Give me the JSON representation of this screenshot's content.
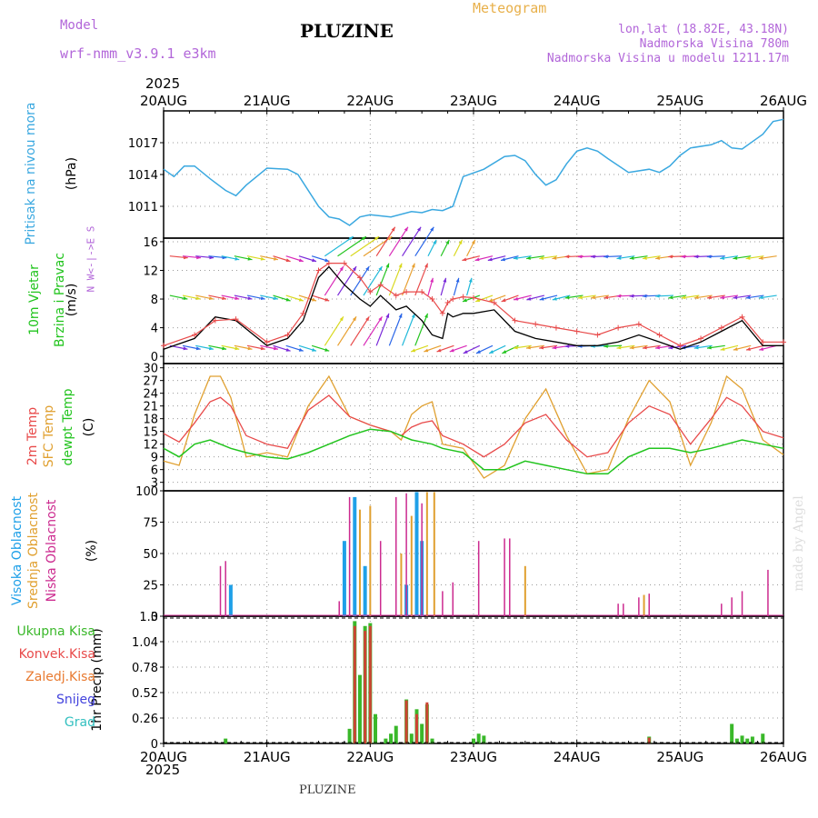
{
  "header": {
    "model_label": "Model",
    "model_name": "wrf-nmm_v3.9.1  e3km",
    "location": "PLUZINE",
    "meteogram": "Meteogram",
    "coords": "lon,lat (18.82E, 43.18N)",
    "elevation": "Nadmorska Visina 780m",
    "model_elevation": "Nadmorska Visina u modelu 1211.17m",
    "year_top": "2025",
    "year_bottom": "2025",
    "footer": "PLUZINE",
    "credit": "made by Angel"
  },
  "days": [
    "20AUG",
    "21AUG",
    "22AUG",
    "23AUG",
    "24AUG",
    "25AUG",
    "26AUG"
  ],
  "colors": {
    "pressure": "#3aa8e0",
    "wind_speed": "#000000",
    "gust": "#e84a4a",
    "temp2m": "#e84a4a",
    "sfc": "#e0a030",
    "dew": "#22c41e",
    "cloud_high": "#1fa0e8",
    "cloud_mid": "#e0a030",
    "cloud_low": "#cc2a8f",
    "precip_total": "#3ab82a",
    "precip_conv": "#cc4433",
    "snow": "#4444dd",
    "hail": "#33c0c0"
  },
  "chart_data": [
    {
      "type": "line",
      "panel": "pressure",
      "ylabel_main": "Pritisak na nivou mora",
      "unit": "(hPa)",
      "yticks": [
        1011,
        1014,
        1017
      ],
      "ylim": [
        1008,
        1020
      ],
      "x": [
        0,
        0.1,
        0.2,
        0.3,
        0.45,
        0.6,
        0.7,
        0.8,
        1.0,
        1.2,
        1.3,
        1.5,
        1.6,
        1.7,
        1.8,
        1.9,
        2.0,
        2.2,
        2.4,
        2.5,
        2.6,
        2.7,
        2.8,
        2.9,
        3.1,
        3.3,
        3.4,
        3.5,
        3.6,
        3.7,
        3.8,
        3.9,
        4.0,
        4.1,
        4.2,
        4.3,
        4.5,
        4.7,
        4.8,
        4.9,
        5.0,
        5.1,
        5.3,
        5.4,
        5.5,
        5.6,
        5.7,
        5.8,
        5.9,
        6.0
      ],
      "values": [
        1014.5,
        1013.8,
        1014.8,
        1014.8,
        1013.6,
        1012.5,
        1012,
        1013,
        1014.6,
        1014.5,
        1014,
        1011,
        1010,
        1009.8,
        1009.2,
        1010,
        1010.2,
        1010,
        1010.5,
        1010.4,
        1010.7,
        1010.6,
        1011,
        1013.8,
        1014.5,
        1015.7,
        1015.8,
        1015.3,
        1014,
        1013,
        1013.5,
        1015,
        1016.2,
        1016.5,
        1016.2,
        1015.5,
        1014.2,
        1014.5,
        1014.2,
        1014.8,
        1015.8,
        1016.5,
        1016.8,
        1017.2,
        1016.5,
        1016.4,
        1017.1,
        1017.8,
        1019,
        1019.2
      ]
    },
    {
      "type": "line",
      "panel": "wind",
      "ylabel_main": "10m Vjetar",
      "ylabel_sub": "Brzina i Pravac",
      "unit": "(m/s)",
      "compass": "N  W<-|->E  S",
      "yticks": [
        0,
        4,
        8,
        12,
        16
      ],
      "ylim": [
        -1,
        16.5
      ],
      "x": [
        0,
        0.3,
        0.5,
        0.7,
        1.0,
        1.2,
        1.35,
        1.5,
        1.6,
        1.75,
        1.9,
        2.0,
        2.1,
        2.25,
        2.35,
        2.5,
        2.6,
        2.7,
        2.75,
        2.8,
        2.9,
        3.0,
        3.2,
        3.4,
        3.6,
        3.8,
        4.0,
        4.2,
        4.4,
        4.6,
        4.8,
        5.0,
        5.2,
        5.4,
        5.6,
        5.8,
        6.0
      ],
      "series": [
        {
          "name": "speed",
          "values": [
            1,
            2.5,
            5.5,
            5,
            1.5,
            2.5,
            5,
            11,
            12.5,
            10,
            8,
            7,
            8.5,
            6.5,
            7,
            5,
            3,
            2.5,
            6,
            5.5,
            6,
            6,
            6.5,
            3.5,
            2.5,
            2,
            1.5,
            1.5,
            2,
            3,
            2,
            1,
            2,
            3.5,
            5,
            1.5,
            1.5
          ]
        },
        {
          "name": "gust",
          "values": [
            1.5,
            3,
            5,
            5.2,
            2,
            3,
            6,
            12,
            13,
            13,
            11,
            9,
            10,
            8.5,
            9,
            9,
            8,
            6,
            7.5,
            8,
            8.3,
            8.2,
            7.5,
            5,
            4.5,
            4,
            3.5,
            3,
            4,
            4.5,
            3,
            1.5,
            2.5,
            4,
            5.5,
            2,
            2
          ]
        }
      ]
    },
    {
      "type": "line",
      "panel": "temperature",
      "ylabel_a": "2m Temp",
      "ylabel_b": "SFC Temp",
      "ylabel_c": "dewpt Temp",
      "unit": "(C)",
      "yticks": [
        3,
        6,
        9,
        12,
        15,
        18,
        21,
        24,
        27,
        30
      ],
      "ylim": [
        1,
        31
      ],
      "x": [
        0,
        0.15,
        0.3,
        0.45,
        0.55,
        0.65,
        0.8,
        1.0,
        1.2,
        1.4,
        1.6,
        1.8,
        2.0,
        2.2,
        2.3,
        2.4,
        2.5,
        2.6,
        2.7,
        2.9,
        3.1,
        3.3,
        3.5,
        3.7,
        3.9,
        4.1,
        4.3,
        4.5,
        4.7,
        4.9,
        5.1,
        5.3,
        5.45,
        5.6,
        5.8,
        6.0
      ],
      "series": [
        {
          "name": "2m",
          "values": [
            14.5,
            12.5,
            17,
            22,
            23,
            21,
            14,
            12,
            11,
            20,
            23.5,
            18.5,
            16.5,
            15,
            14,
            16,
            17,
            17.5,
            14,
            12,
            9,
            12,
            17,
            19,
            13,
            9,
            10,
            17,
            21,
            19,
            12,
            18,
            23,
            21,
            15,
            13.5
          ]
        },
        {
          "name": "sfc",
          "values": [
            8,
            7,
            19,
            28,
            28,
            23,
            9,
            10,
            9,
            21,
            28,
            18.5,
            16.5,
            15,
            13,
            19,
            21,
            22,
            12,
            11,
            4,
            7,
            18,
            25,
            14,
            5,
            6,
            18,
            27,
            22,
            7,
            17,
            28,
            25,
            13,
            9.5
          ]
        },
        {
          "name": "dew",
          "values": [
            11,
            9,
            12,
            13,
            12,
            11,
            10,
            9,
            8.5,
            10,
            12,
            14,
            15.5,
            15,
            14,
            13,
            12.5,
            12,
            11,
            10,
            6,
            6,
            8,
            7,
            6,
            5,
            5,
            9,
            11,
            11,
            10,
            11,
            12,
            13,
            12,
            11
          ]
        }
      ]
    },
    {
      "type": "bar",
      "panel": "clouds",
      "ylabel_a": "Visoka Oblacnost",
      "ylabel_b": "Srednja Oblacnost",
      "ylabel_c": "Niska Oblacnost",
      "unit": "(%)",
      "yticks": [
        0,
        25,
        50,
        75,
        100
      ],
      "ylim": [
        0,
        100
      ],
      "series": [
        {
          "name": "high",
          "points": [
            [
              0.65,
              25
            ],
            [
              1.75,
              60
            ],
            [
              1.85,
              95
            ],
            [
              1.95,
              40
            ],
            [
              2.35,
              25
            ],
            [
              2.45,
              99
            ],
            [
              2.5,
              60
            ]
          ]
        },
        {
          "name": "mid",
          "points": [
            [
              1.9,
              85
            ],
            [
              2.0,
              88
            ],
            [
              2.3,
              50
            ],
            [
              2.4,
              80
            ],
            [
              2.55,
              99
            ],
            [
              2.62,
              99
            ],
            [
              3.5,
              40
            ],
            [
              4.65,
              17
            ]
          ]
        },
        {
          "name": "low",
          "points": [
            [
              0.55,
              40
            ],
            [
              0.6,
              44
            ],
            [
              1.7,
              12
            ],
            [
              1.8,
              95
            ],
            [
              2.1,
              60
            ],
            [
              2.25,
              95
            ],
            [
              2.35,
              98
            ],
            [
              2.5,
              90
            ],
            [
              2.7,
              20
            ],
            [
              2.8,
              27
            ],
            [
              3.05,
              60
            ],
            [
              3.3,
              62
            ],
            [
              3.35,
              62
            ],
            [
              4.4,
              10
            ],
            [
              4.45,
              10
            ],
            [
              4.6,
              15
            ],
            [
              4.7,
              18
            ],
            [
              5.4,
              10
            ],
            [
              5.5,
              15
            ],
            [
              5.6,
              20
            ],
            [
              5.85,
              37
            ]
          ]
        }
      ]
    },
    {
      "type": "bar",
      "panel": "precip",
      "ylabel_main": "1hr Precip (mm)",
      "legend": [
        "Ukupna Kisa",
        "Konvek.Kisa",
        "Zaledj.Kisa",
        "Snijeg",
        "Grad"
      ],
      "yticks": [
        0,
        0.26,
        0.52,
        0.78,
        1.04,
        1.3
      ],
      "ylim": [
        0,
        1.3
      ],
      "series": [
        {
          "name": "total",
          "points": [
            [
              0.6,
              0.05
            ],
            [
              1.8,
              0.15
            ],
            [
              1.85,
              1.25
            ],
            [
              1.9,
              0.7
            ],
            [
              1.95,
              1.2
            ],
            [
              2.0,
              1.23
            ],
            [
              2.05,
              0.3
            ],
            [
              2.15,
              0.05
            ],
            [
              2.2,
              0.1
            ],
            [
              2.25,
              0.18
            ],
            [
              2.35,
              0.45
            ],
            [
              2.4,
              0.1
            ],
            [
              2.45,
              0.35
            ],
            [
              2.5,
              0.2
            ],
            [
              2.55,
              0.4
            ],
            [
              2.6,
              0.05
            ],
            [
              3.0,
              0.05
            ],
            [
              3.05,
              0.1
            ],
            [
              3.1,
              0.08
            ],
            [
              4.7,
              0.07
            ],
            [
              5.5,
              0.2
            ],
            [
              5.55,
              0.05
            ],
            [
              5.6,
              0.08
            ],
            [
              5.65,
              0.05
            ],
            [
              5.7,
              0.07
            ],
            [
              5.8,
              0.1
            ]
          ]
        },
        {
          "name": "conv",
          "points": [
            [
              1.85,
              1.2
            ],
            [
              1.95,
              1.15
            ],
            [
              2.0,
              1.2
            ],
            [
              2.35,
              0.44
            ],
            [
              2.45,
              0.3
            ],
            [
              2.55,
              0.42
            ],
            [
              4.7,
              0.06
            ]
          ]
        }
      ]
    }
  ]
}
